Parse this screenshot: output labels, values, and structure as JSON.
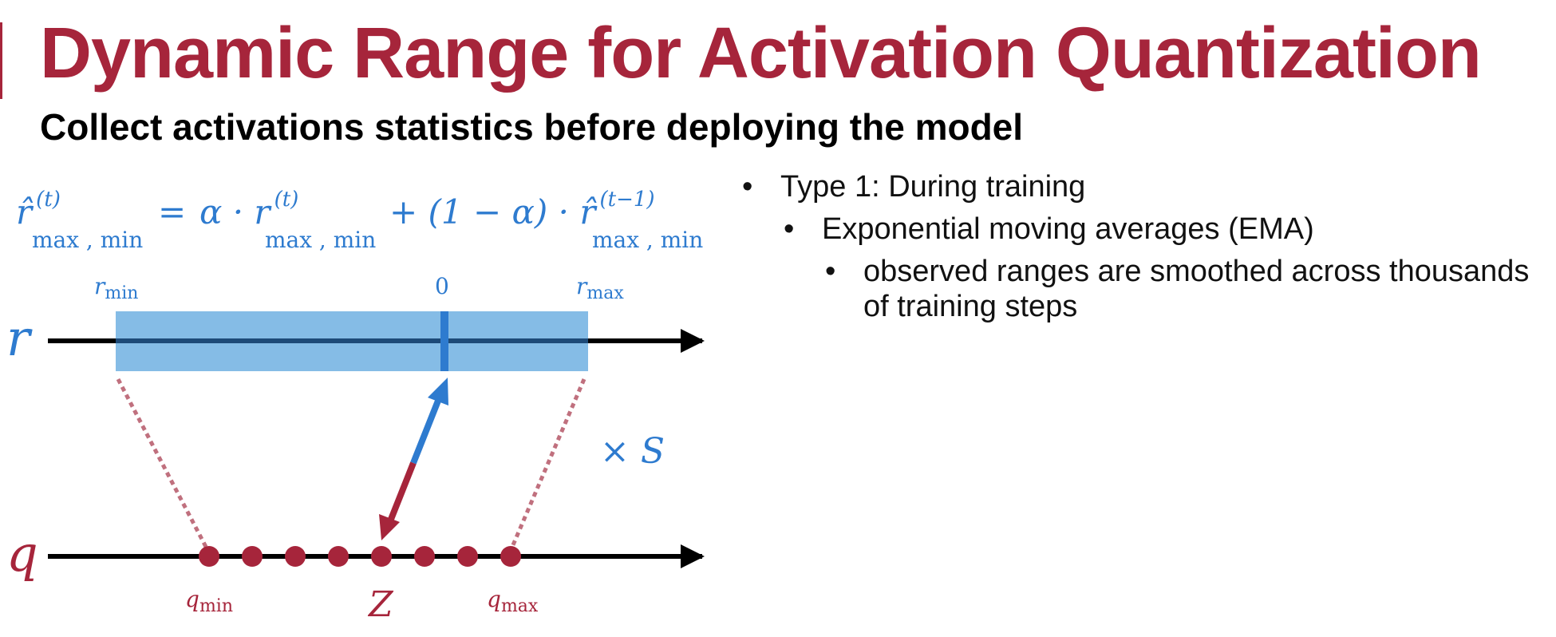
{
  "slide": {
    "title": "Dynamic Range for Activation Quantization",
    "subtitle": "Collect activations statistics before deploying the model"
  },
  "colors": {
    "accent": "#a6253b",
    "blue": "#2e7bcf",
    "band": "#85bce6"
  },
  "formula": {
    "lhs_base": "r̂",
    "lhs_sup": "(t)",
    "lhs_sub": "max , min",
    "eq": "=",
    "alpha_term": "α · r",
    "mid_sup": "(t)",
    "mid_sub": "max , min",
    "plus_term": "+ (1 − α) · r̂",
    "rhs_sup": "(t−1)",
    "rhs_sub": "max , min"
  },
  "diagram": {
    "r_axis_label": "r",
    "q_axis_label": "q",
    "r_min_base": "r",
    "r_min_sub": "min",
    "zero_label": "0",
    "r_max_base": "r",
    "r_max_sub": "max",
    "scale_label": "× S",
    "q_min_base": "q",
    "q_min_sub": "min",
    "zero_point_label": "Z",
    "q_max_base": "q",
    "q_max_sub": "max"
  },
  "bullets": [
    {
      "level": 1,
      "text": "Type 1: During training"
    },
    {
      "level": 2,
      "text": "Exponential moving averages (EMA)"
    },
    {
      "level": 3,
      "text": "observed ranges are smoothed across thousands of training steps"
    }
  ]
}
